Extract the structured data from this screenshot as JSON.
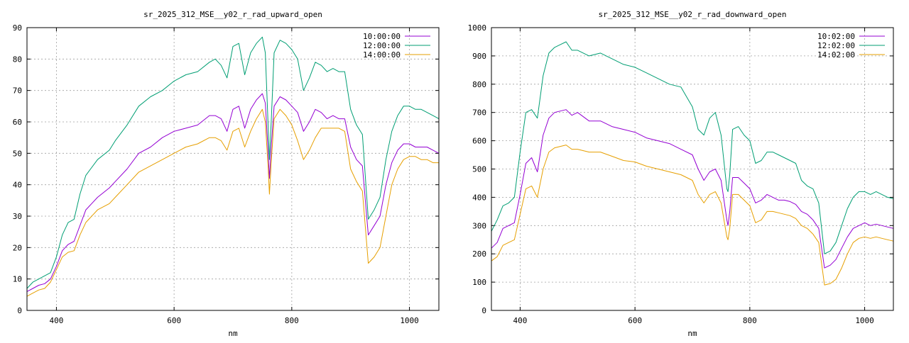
{
  "chart_data": [
    {
      "type": "line",
      "title": "sr_2025_312_MSE__y02_r_rad_upward_open",
      "xlabel": "nm",
      "ylabel": "",
      "xlim": [
        350,
        1050
      ],
      "ylim": [
        0,
        90
      ],
      "xticks": [
        400,
        600,
        800,
        1000
      ],
      "yticks": [
        0,
        10,
        20,
        30,
        40,
        50,
        60,
        70,
        80,
        90
      ],
      "grid": true,
      "legend": "top-right",
      "series": [
        {
          "name": "10:00:00",
          "color": "#9400d3",
          "x": [
            350,
            360,
            370,
            380,
            390,
            400,
            410,
            420,
            430,
            440,
            450,
            470,
            490,
            500,
            520,
            540,
            560,
            580,
            600,
            620,
            640,
            660,
            670,
            680,
            690,
            700,
            710,
            720,
            730,
            740,
            750,
            755,
            760,
            762,
            765,
            770,
            780,
            790,
            800,
            810,
            820,
            830,
            840,
            850,
            860,
            870,
            880,
            890,
            900,
            910,
            920,
            930,
            940,
            950,
            960,
            970,
            980,
            990,
            1000,
            1010,
            1020,
            1030,
            1040,
            1050
          ],
          "y": [
            6,
            7,
            8,
            8.5,
            10,
            14,
            19,
            21,
            22,
            27,
            32,
            36,
            39,
            41,
            45,
            50,
            52,
            55,
            57,
            58,
            59,
            62,
            62,
            61,
            57,
            64,
            65,
            58,
            64,
            67,
            69,
            66,
            50,
            42,
            52,
            65,
            68,
            67,
            65,
            63,
            57,
            60,
            64,
            63,
            61,
            62,
            61,
            61,
            52,
            48,
            46,
            24,
            27,
            30,
            40,
            47,
            51,
            53,
            53,
            52,
            52,
            52,
            51,
            50
          ]
        },
        {
          "name": "12:00:00",
          "color": "#009e73",
          "x": [
            350,
            360,
            370,
            380,
            390,
            400,
            410,
            420,
            430,
            440,
            450,
            470,
            490,
            500,
            520,
            540,
            560,
            580,
            600,
            620,
            640,
            660,
            670,
            680,
            690,
            700,
            710,
            720,
            730,
            740,
            750,
            755,
            760,
            762,
            765,
            770,
            780,
            790,
            800,
            810,
            820,
            830,
            840,
            850,
            860,
            870,
            880,
            890,
            900,
            910,
            920,
            930,
            940,
            950,
            960,
            970,
            980,
            990,
            1000,
            1010,
            1020,
            1030,
            1040,
            1050
          ],
          "y": [
            7,
            9,
            10,
            11,
            12,
            17,
            24,
            28,
            29,
            37,
            43,
            48,
            51,
            54,
            59,
            65,
            68,
            70,
            73,
            75,
            76,
            79,
            80,
            78,
            74,
            84,
            85,
            75,
            82,
            85,
            87,
            82,
            58,
            48,
            60,
            82,
            86,
            85,
            83,
            80,
            70,
            74,
            79,
            78,
            76,
            77,
            76,
            76,
            64,
            59,
            56,
            29,
            32,
            36,
            48,
            57,
            62,
            65,
            65,
            64,
            64,
            63,
            62,
            61
          ]
        },
        {
          "name": "14:00:00",
          "color": "#e69f00",
          "x": [
            350,
            360,
            370,
            380,
            390,
            400,
            410,
            420,
            430,
            440,
            450,
            470,
            490,
            500,
            520,
            540,
            560,
            580,
            600,
            620,
            640,
            660,
            670,
            680,
            690,
            700,
            710,
            720,
            730,
            740,
            750,
            755,
            760,
            762,
            765,
            770,
            780,
            790,
            800,
            810,
            820,
            830,
            840,
            850,
            860,
            870,
            880,
            890,
            900,
            910,
            920,
            930,
            940,
            950,
            960,
            970,
            980,
            990,
            1000,
            1010,
            1020,
            1030,
            1040,
            1050
          ],
          "y": [
            4.5,
            5.5,
            6.5,
            7,
            9,
            13,
            17,
            18.5,
            19,
            24,
            28,
            32,
            34,
            36,
            40,
            44,
            46,
            48,
            50,
            52,
            53,
            55,
            55,
            54,
            51,
            57,
            58,
            52,
            57,
            61,
            64,
            60,
            45,
            37,
            47,
            61,
            64,
            62,
            59,
            54,
            48,
            51,
            55,
            58,
            58,
            58,
            58,
            57,
            45,
            41,
            38,
            15,
            17,
            20,
            30,
            40,
            45,
            48,
            49,
            49,
            48,
            48,
            47,
            47
          ]
        }
      ]
    },
    {
      "type": "line",
      "title": "sr_2025_312_MSE__y02_r_rad_downward_open",
      "xlabel": "nm",
      "ylabel": "",
      "xlim": [
        350,
        1050
      ],
      "ylim": [
        0,
        1000
      ],
      "xticks": [
        400,
        600,
        800,
        1000
      ],
      "yticks": [
        0,
        100,
        200,
        300,
        400,
        500,
        600,
        700,
        800,
        900,
        1000
      ],
      "grid": true,
      "legend": "top-right",
      "series": [
        {
          "name": "10:02:00",
          "color": "#9400d3",
          "x": [
            350,
            360,
            370,
            380,
            390,
            400,
            410,
            420,
            430,
            440,
            450,
            460,
            470,
            480,
            490,
            500,
            520,
            540,
            560,
            580,
            600,
            620,
            640,
            660,
            680,
            700,
            710,
            720,
            730,
            740,
            750,
            760,
            762,
            765,
            770,
            780,
            790,
            800,
            810,
            820,
            830,
            840,
            850,
            860,
            870,
            880,
            890,
            900,
            910,
            920,
            930,
            940,
            950,
            960,
            970,
            980,
            990,
            1000,
            1010,
            1020,
            1030,
            1040,
            1050
          ],
          "y": [
            220,
            240,
            290,
            300,
            310,
            410,
            520,
            540,
            490,
            620,
            680,
            700,
            705,
            710,
            690,
            700,
            670,
            670,
            650,
            640,
            630,
            610,
            600,
            590,
            570,
            550,
            500,
            460,
            490,
            500,
            460,
            320,
            300,
            350,
            470,
            470,
            450,
            430,
            380,
            390,
            410,
            400,
            390,
            390,
            385,
            375,
            350,
            340,
            320,
            290,
            150,
            160,
            180,
            220,
            260,
            290,
            300,
            310,
            300,
            305,
            300,
            295,
            290
          ]
        },
        {
          "name": "12:02:00",
          "color": "#009e73",
          "x": [
            350,
            360,
            370,
            380,
            390,
            400,
            410,
            420,
            430,
            440,
            450,
            460,
            470,
            480,
            490,
            500,
            520,
            540,
            560,
            580,
            600,
            620,
            640,
            660,
            680,
            700,
            710,
            720,
            730,
            740,
            750,
            760,
            762,
            765,
            770,
            780,
            790,
            800,
            810,
            820,
            830,
            840,
            850,
            860,
            870,
            880,
            890,
            900,
            910,
            920,
            930,
            940,
            950,
            960,
            970,
            980,
            990,
            1000,
            1010,
            1020,
            1030,
            1040,
            1050
          ],
          "y": [
            280,
            320,
            370,
            380,
            400,
            560,
            700,
            710,
            680,
            830,
            910,
            930,
            940,
            950,
            920,
            920,
            900,
            910,
            890,
            870,
            860,
            840,
            820,
            800,
            790,
            720,
            640,
            620,
            680,
            700,
            620,
            430,
            420,
            480,
            640,
            650,
            620,
            600,
            520,
            530,
            560,
            560,
            550,
            540,
            530,
            520,
            460,
            440,
            430,
            380,
            200,
            210,
            240,
            300,
            360,
            400,
            420,
            420,
            410,
            420,
            410,
            400,
            395
          ]
        },
        {
          "name": "14:02:00",
          "color": "#e69f00",
          "x": [
            350,
            360,
            370,
            380,
            390,
            400,
            410,
            420,
            430,
            440,
            450,
            460,
            470,
            480,
            490,
            500,
            520,
            540,
            560,
            580,
            600,
            620,
            640,
            660,
            680,
            700,
            710,
            720,
            730,
            740,
            750,
            760,
            762,
            765,
            770,
            780,
            790,
            800,
            810,
            820,
            830,
            840,
            850,
            860,
            870,
            880,
            890,
            900,
            910,
            920,
            930,
            940,
            950,
            960,
            970,
            980,
            990,
            1000,
            1010,
            1020,
            1030,
            1040,
            1050
          ],
          "y": [
            175,
            190,
            230,
            240,
            250,
            340,
            430,
            440,
            400,
            500,
            560,
            575,
            580,
            585,
            570,
            570,
            560,
            560,
            545,
            530,
            525,
            510,
            500,
            490,
            480,
            460,
            410,
            380,
            410,
            420,
            380,
            260,
            250,
            290,
            410,
            410,
            390,
            370,
            310,
            320,
            350,
            350,
            345,
            340,
            335,
            325,
            300,
            290,
            270,
            240,
            90,
            95,
            110,
            150,
            200,
            240,
            255,
            260,
            255,
            260,
            255,
            250,
            245
          ]
        }
      ]
    }
  ]
}
